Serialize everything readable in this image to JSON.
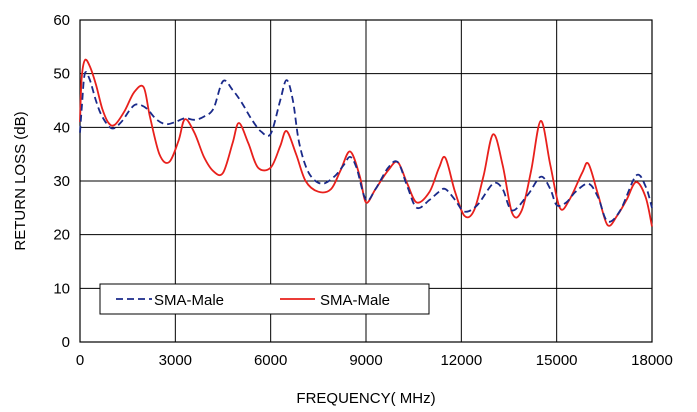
{
  "chart_data": {
    "type": "line",
    "xlabel": "FREQUENCY( MHz)",
    "ylabel": "RETURN LOSS (dB)",
    "xlim": [
      0,
      18000
    ],
    "ylim": [
      0,
      60
    ],
    "x_ticks": [
      "0",
      "3000",
      "6000",
      "9000",
      "12000",
      "15000",
      "18000"
    ],
    "y_ticks": [
      "0",
      "10",
      "20",
      "30",
      "40",
      "50",
      "60"
    ],
    "grid": true,
    "legend_position": "bottom-left",
    "series": [
      {
        "name": "SMA-Male",
        "color": "#1a2a8a",
        "style": "dashed",
        "points": [
          [
            0,
            39
          ],
          [
            60,
            44
          ],
          [
            150,
            50
          ],
          [
            300,
            49
          ],
          [
            500,
            45
          ],
          [
            700,
            42
          ],
          [
            1000,
            39.8
          ],
          [
            1300,
            41
          ],
          [
            1600,
            43.5
          ],
          [
            1800,
            44.3
          ],
          [
            2100,
            43.5
          ],
          [
            2400,
            41.5
          ],
          [
            2700,
            40.6
          ],
          [
            3000,
            41
          ],
          [
            3300,
            41.7
          ],
          [
            3600,
            41.4
          ],
          [
            3900,
            42
          ],
          [
            4200,
            43.5
          ],
          [
            4500,
            48.6
          ],
          [
            4800,
            47
          ],
          [
            5100,
            44.5
          ],
          [
            5400,
            41.5
          ],
          [
            5700,
            39.2
          ],
          [
            6000,
            38.8
          ],
          [
            6300,
            45
          ],
          [
            6500,
            48.8
          ],
          [
            6700,
            45
          ],
          [
            6900,
            37
          ],
          [
            7200,
            31.5
          ],
          [
            7600,
            29.5
          ],
          [
            8000,
            30.8
          ],
          [
            8300,
            33
          ],
          [
            8500,
            34.5
          ],
          [
            8700,
            32.5
          ],
          [
            9000,
            26.5
          ],
          [
            9300,
            28.5
          ],
          [
            9700,
            32.5
          ],
          [
            10000,
            33.5
          ],
          [
            10300,
            29
          ],
          [
            10600,
            25
          ],
          [
            11000,
            26.5
          ],
          [
            11300,
            28
          ],
          [
            11500,
            28.5
          ],
          [
            11800,
            26.5
          ],
          [
            12100,
            24.3
          ],
          [
            12500,
            25.5
          ],
          [
            13000,
            29.5
          ],
          [
            13300,
            28.5
          ],
          [
            13600,
            24.5
          ],
          [
            14100,
            27.5
          ],
          [
            14500,
            30.8
          ],
          [
            14800,
            28.5
          ],
          [
            15000,
            25.5
          ],
          [
            15300,
            26
          ],
          [
            15600,
            28
          ],
          [
            16000,
            29.5
          ],
          [
            16300,
            27
          ],
          [
            16600,
            22.5
          ],
          [
            17000,
            24.5
          ],
          [
            17500,
            31
          ],
          [
            17800,
            29
          ],
          [
            18000,
            25
          ]
        ]
      },
      {
        "name": "SMA-Male",
        "color": "#e8201c",
        "style": "solid",
        "points": [
          [
            0,
            41
          ],
          [
            50,
            49
          ],
          [
            150,
            52.5
          ],
          [
            300,
            51.5
          ],
          [
            500,
            48
          ],
          [
            700,
            43.5
          ],
          [
            900,
            40.8
          ],
          [
            1100,
            40.5
          ],
          [
            1400,
            43
          ],
          [
            1700,
            46.5
          ],
          [
            2000,
            47.5
          ],
          [
            2200,
            42
          ],
          [
            2500,
            35
          ],
          [
            2800,
            33.5
          ],
          [
            3100,
            37.5
          ],
          [
            3300,
            41.5
          ],
          [
            3600,
            39
          ],
          [
            3900,
            34.5
          ],
          [
            4200,
            31.8
          ],
          [
            4500,
            31.5
          ],
          [
            4800,
            37
          ],
          [
            5000,
            40.8
          ],
          [
            5300,
            37
          ],
          [
            5600,
            32.5
          ],
          [
            6000,
            32.5
          ],
          [
            6300,
            36.5
          ],
          [
            6500,
            39.3
          ],
          [
            6800,
            35
          ],
          [
            7100,
            30
          ],
          [
            7500,
            28
          ],
          [
            7900,
            28.5
          ],
          [
            8200,
            32
          ],
          [
            8500,
            35.5
          ],
          [
            8800,
            31
          ],
          [
            9000,
            26
          ],
          [
            9300,
            28.5
          ],
          [
            9700,
            32
          ],
          [
            10000,
            33.5
          ],
          [
            10300,
            29.5
          ],
          [
            10600,
            26
          ],
          [
            11000,
            28
          ],
          [
            11300,
            32.5
          ],
          [
            11500,
            34.3
          ],
          [
            11800,
            28
          ],
          [
            12100,
            23.5
          ],
          [
            12400,
            24.5
          ],
          [
            12700,
            31
          ],
          [
            13000,
            38.7
          ],
          [
            13300,
            33
          ],
          [
            13600,
            24
          ],
          [
            13900,
            24.5
          ],
          [
            14200,
            32
          ],
          [
            14500,
            41.2
          ],
          [
            14800,
            33
          ],
          [
            15100,
            25
          ],
          [
            15400,
            26.5
          ],
          [
            15800,
            31.5
          ],
          [
            16000,
            33.2
          ],
          [
            16300,
            27.5
          ],
          [
            16600,
            21.8
          ],
          [
            16900,
            23.5
          ],
          [
            17200,
            26.5
          ],
          [
            17500,
            29.8
          ],
          [
            17800,
            27
          ],
          [
            18000,
            21.5
          ]
        ]
      }
    ]
  }
}
